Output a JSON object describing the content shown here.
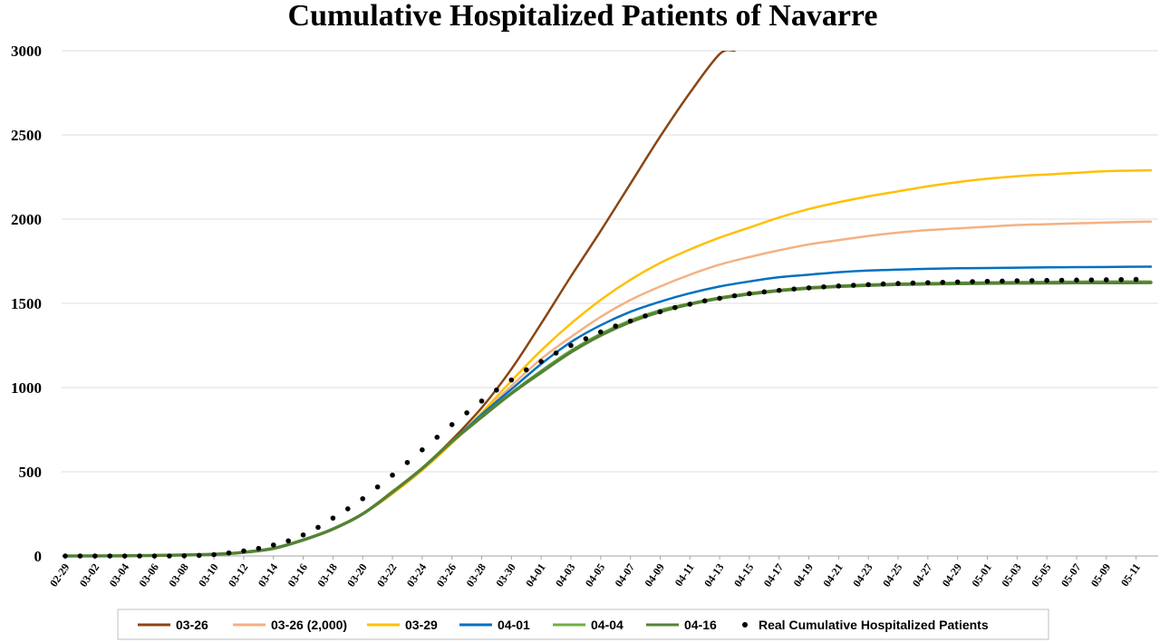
{
  "chart_data": {
    "type": "line",
    "title": "Cumulative Hospitalized Patients of Navarre",
    "xlabel": "",
    "ylabel": "",
    "ylim": [
      0,
      3000
    ],
    "yticks": [
      0,
      500,
      1000,
      1500,
      2000,
      2500,
      3000
    ],
    "grid": "horizontal",
    "legend_position": "bottom",
    "date_axis": {
      "start": "2020-02-29",
      "end": "2020-05-12"
    },
    "xticks": [
      "02-29",
      "03-02",
      "03-04",
      "03-06",
      "03-08",
      "03-10",
      "03-12",
      "03-14",
      "03-16",
      "03-18",
      "03-20",
      "03-22",
      "03-24",
      "03-26",
      "03-28",
      "03-30",
      "04-01",
      "04-03",
      "04-05",
      "04-07",
      "04-09",
      "04-11",
      "04-13",
      "04-15",
      "04-17",
      "04-19",
      "04-21",
      "04-23",
      "04-25",
      "04-27",
      "04-29",
      "05-01",
      "05-03",
      "05-05",
      "05-07",
      "05-09",
      "05-11"
    ],
    "series": [
      {
        "name": "03-26",
        "color": "#8B4513",
        "style": "line",
        "x": [
          "2020-02-29",
          "2020-03-05",
          "2020-03-10",
          "2020-03-12",
          "2020-03-14",
          "2020-03-16",
          "2020-03-18",
          "2020-03-20",
          "2020-03-22",
          "2020-03-24",
          "2020-03-26",
          "2020-03-28",
          "2020-03-30",
          "2020-04-01",
          "2020-04-03",
          "2020-04-05",
          "2020-04-07",
          "2020-04-09",
          "2020-04-11",
          "2020-04-13",
          "2020-04-14"
        ],
        "values": [
          0,
          2,
          10,
          22,
          45,
          95,
          160,
          250,
          370,
          520,
          690,
          880,
          1110,
          1380,
          1660,
          1930,
          2210,
          2490,
          2750,
          2980,
          3000
        ]
      },
      {
        "name": "03-26 (2,000)",
        "color": "#F4B183",
        "style": "line",
        "x": [
          "2020-02-29",
          "2020-03-05",
          "2020-03-10",
          "2020-03-12",
          "2020-03-14",
          "2020-03-16",
          "2020-03-18",
          "2020-03-20",
          "2020-03-22",
          "2020-03-24",
          "2020-03-26",
          "2020-03-28",
          "2020-03-30",
          "2020-04-01",
          "2020-04-03",
          "2020-04-05",
          "2020-04-07",
          "2020-04-09",
          "2020-04-11",
          "2020-04-13",
          "2020-04-15",
          "2020-04-17",
          "2020-04-19",
          "2020-04-21",
          "2020-04-23",
          "2020-04-25",
          "2020-04-27",
          "2020-04-29",
          "2020-05-01",
          "2020-05-03",
          "2020-05-05",
          "2020-05-07",
          "2020-05-09",
          "2020-05-12"
        ],
        "values": [
          0,
          2,
          10,
          22,
          45,
          95,
          160,
          250,
          370,
          510,
          670,
          840,
          1010,
          1170,
          1300,
          1420,
          1520,
          1600,
          1670,
          1730,
          1775,
          1815,
          1850,
          1875,
          1900,
          1920,
          1935,
          1945,
          1955,
          1965,
          1970,
          1975,
          1980,
          1985
        ]
      },
      {
        "name": "03-29",
        "color": "#FFC000",
        "style": "line",
        "x": [
          "2020-02-29",
          "2020-03-05",
          "2020-03-10",
          "2020-03-12",
          "2020-03-14",
          "2020-03-16",
          "2020-03-18",
          "2020-03-20",
          "2020-03-22",
          "2020-03-24",
          "2020-03-26",
          "2020-03-28",
          "2020-03-30",
          "2020-04-01",
          "2020-04-03",
          "2020-04-05",
          "2020-04-07",
          "2020-04-09",
          "2020-04-11",
          "2020-04-13",
          "2020-04-15",
          "2020-04-17",
          "2020-04-19",
          "2020-04-21",
          "2020-04-23",
          "2020-04-25",
          "2020-04-27",
          "2020-04-29",
          "2020-05-01",
          "2020-05-03",
          "2020-05-05",
          "2020-05-07",
          "2020-05-09",
          "2020-05-12"
        ],
        "values": [
          0,
          2,
          10,
          22,
          45,
          95,
          160,
          250,
          370,
          510,
          670,
          850,
          1040,
          1220,
          1380,
          1520,
          1640,
          1740,
          1820,
          1890,
          1950,
          2010,
          2060,
          2100,
          2135,
          2165,
          2195,
          2220,
          2240,
          2255,
          2265,
          2275,
          2285,
          2290
        ]
      },
      {
        "name": "04-01",
        "color": "#0070C0",
        "style": "line",
        "x": [
          "2020-02-29",
          "2020-03-05",
          "2020-03-10",
          "2020-03-12",
          "2020-03-14",
          "2020-03-16",
          "2020-03-18",
          "2020-03-20",
          "2020-03-22",
          "2020-03-24",
          "2020-03-26",
          "2020-03-28",
          "2020-03-30",
          "2020-04-01",
          "2020-04-03",
          "2020-04-05",
          "2020-04-07",
          "2020-04-09",
          "2020-04-11",
          "2020-04-13",
          "2020-04-15",
          "2020-04-17",
          "2020-04-19",
          "2020-04-21",
          "2020-04-23",
          "2020-04-25",
          "2020-04-27",
          "2020-04-29",
          "2020-05-01",
          "2020-05-03",
          "2020-05-05",
          "2020-05-07",
          "2020-05-09",
          "2020-05-12"
        ],
        "values": [
          0,
          2,
          10,
          22,
          45,
          95,
          160,
          250,
          380,
          520,
          680,
          840,
          990,
          1140,
          1270,
          1370,
          1450,
          1510,
          1560,
          1600,
          1630,
          1655,
          1670,
          1685,
          1695,
          1700,
          1705,
          1708,
          1710,
          1712,
          1714,
          1715,
          1716,
          1718
        ]
      },
      {
        "name": "04-04",
        "color": "#70AD47",
        "style": "line",
        "x": [
          "2020-02-29",
          "2020-03-05",
          "2020-03-10",
          "2020-03-12",
          "2020-03-14",
          "2020-03-16",
          "2020-03-18",
          "2020-03-20",
          "2020-03-22",
          "2020-03-24",
          "2020-03-26",
          "2020-03-28",
          "2020-03-30",
          "2020-04-01",
          "2020-04-03",
          "2020-04-05",
          "2020-04-07",
          "2020-04-09",
          "2020-04-11",
          "2020-04-13",
          "2020-04-15",
          "2020-04-17",
          "2020-04-19",
          "2020-04-21",
          "2020-04-23",
          "2020-04-25",
          "2020-04-27",
          "2020-04-29",
          "2020-05-01",
          "2020-05-03",
          "2020-05-05",
          "2020-05-07",
          "2020-05-09",
          "2020-05-12"
        ],
        "values": [
          0,
          2,
          10,
          22,
          45,
          95,
          160,
          250,
          380,
          520,
          680,
          830,
          970,
          1100,
          1220,
          1320,
          1400,
          1460,
          1500,
          1535,
          1560,
          1580,
          1595,
          1605,
          1612,
          1617,
          1620,
          1623,
          1625,
          1627,
          1628,
          1629,
          1630,
          1630
        ]
      },
      {
        "name": "04-16",
        "color": "#548235",
        "style": "line",
        "x": [
          "2020-02-29",
          "2020-03-05",
          "2020-03-10",
          "2020-03-12",
          "2020-03-14",
          "2020-03-16",
          "2020-03-18",
          "2020-03-20",
          "2020-03-22",
          "2020-03-24",
          "2020-03-26",
          "2020-03-28",
          "2020-03-30",
          "2020-04-01",
          "2020-04-03",
          "2020-04-05",
          "2020-04-07",
          "2020-04-09",
          "2020-04-11",
          "2020-04-13",
          "2020-04-15",
          "2020-04-17",
          "2020-04-19",
          "2020-04-21",
          "2020-04-23",
          "2020-04-25",
          "2020-04-27",
          "2020-04-29",
          "2020-05-01",
          "2020-05-03",
          "2020-05-05",
          "2020-05-07",
          "2020-05-09",
          "2020-05-12"
        ],
        "values": [
          0,
          2,
          10,
          22,
          45,
          95,
          160,
          250,
          380,
          520,
          680,
          825,
          965,
          1090,
          1210,
          1310,
          1390,
          1450,
          1495,
          1530,
          1555,
          1575,
          1590,
          1600,
          1607,
          1612,
          1615,
          1617,
          1619,
          1620,
          1621,
          1622,
          1622,
          1623
        ]
      },
      {
        "name": "Real Cumulative Hospitalized Patients",
        "color": "#000000",
        "style": "dots",
        "x": [
          "2020-02-29",
          "2020-03-01",
          "2020-03-02",
          "2020-03-03",
          "2020-03-04",
          "2020-03-05",
          "2020-03-06",
          "2020-03-07",
          "2020-03-08",
          "2020-03-09",
          "2020-03-10",
          "2020-03-11",
          "2020-03-12",
          "2020-03-13",
          "2020-03-14",
          "2020-03-15",
          "2020-03-16",
          "2020-03-17",
          "2020-03-18",
          "2020-03-19",
          "2020-03-20",
          "2020-03-21",
          "2020-03-22",
          "2020-03-23",
          "2020-03-24",
          "2020-03-25",
          "2020-03-26",
          "2020-03-27",
          "2020-03-28",
          "2020-03-29",
          "2020-03-30",
          "2020-03-31",
          "2020-04-01",
          "2020-04-02",
          "2020-04-03",
          "2020-04-04",
          "2020-04-05",
          "2020-04-06",
          "2020-04-07",
          "2020-04-08",
          "2020-04-09",
          "2020-04-10",
          "2020-04-11",
          "2020-04-12",
          "2020-04-13",
          "2020-04-14",
          "2020-04-15",
          "2020-04-16",
          "2020-04-17",
          "2020-04-18",
          "2020-04-19",
          "2020-04-20",
          "2020-04-21",
          "2020-04-22",
          "2020-04-23",
          "2020-04-24",
          "2020-04-25",
          "2020-04-26",
          "2020-04-27",
          "2020-04-28",
          "2020-04-29",
          "2020-04-30",
          "2020-05-01",
          "2020-05-02",
          "2020-05-03",
          "2020-05-04",
          "2020-05-05",
          "2020-05-06",
          "2020-05-07",
          "2020-05-08",
          "2020-05-09",
          "2020-05-10",
          "2020-05-11"
        ],
        "values": [
          0,
          0,
          0,
          0,
          0,
          0,
          0,
          0,
          1,
          3,
          8,
          18,
          30,
          45,
          65,
          90,
          125,
          170,
          225,
          280,
          340,
          410,
          480,
          555,
          630,
          705,
          780,
          850,
          920,
          985,
          1045,
          1105,
          1155,
          1205,
          1250,
          1290,
          1330,
          1365,
          1395,
          1425,
          1450,
          1475,
          1495,
          1515,
          1530,
          1545,
          1558,
          1568,
          1577,
          1585,
          1592,
          1598,
          1603,
          1607,
          1611,
          1615,
          1618,
          1621,
          1623,
          1625,
          1627,
          1629,
          1631,
          1632,
          1634,
          1635,
          1636,
          1637,
          1638,
          1639,
          1640,
          1641,
          1642
        ]
      }
    ]
  }
}
